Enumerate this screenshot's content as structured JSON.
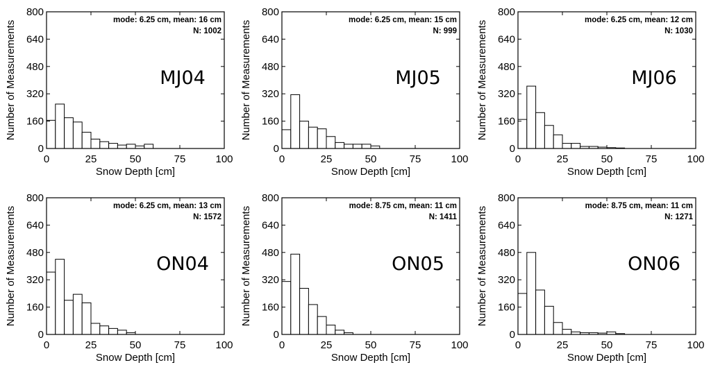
{
  "chart_data": [
    {
      "type": "bar",
      "label": "MJ04",
      "stats": "mode: 6.25 cm, mean: 16 cm",
      "count_label": "N: 1002",
      "xlabel": "Snow Depth [cm]",
      "ylabel": "Number of Measurements",
      "xlim": [
        0,
        100
      ],
      "ylim": [
        0,
        800
      ],
      "xticks": [
        0,
        25,
        50,
        75,
        100
      ],
      "yticks": [
        0,
        160,
        320,
        480,
        640,
        800
      ],
      "bin_width": 5,
      "bin_starts": [
        0,
        5,
        10,
        15,
        20,
        25,
        30,
        35,
        40,
        45,
        50,
        55
      ],
      "values": [
        165,
        260,
        180,
        155,
        95,
        55,
        40,
        30,
        20,
        25,
        15,
        25
      ]
    },
    {
      "type": "bar",
      "label": "MJ05",
      "stats": "mode: 6.25 cm, mean: 15 cm",
      "count_label": "N: 999",
      "xlabel": "Snow Depth [cm]",
      "ylabel": "Number of Measurements",
      "xlim": [
        0,
        100
      ],
      "ylim": [
        0,
        800
      ],
      "xticks": [
        0,
        25,
        50,
        75,
        100
      ],
      "yticks": [
        0,
        160,
        320,
        480,
        640,
        800
      ],
      "bin_width": 5,
      "bin_starts": [
        0,
        5,
        10,
        15,
        20,
        25,
        30,
        35,
        40,
        45,
        50
      ],
      "values": [
        110,
        315,
        160,
        125,
        115,
        70,
        35,
        25,
        25,
        25,
        15
      ]
    },
    {
      "type": "bar",
      "label": "MJ06",
      "stats": "mode: 6.25 cm, mean: 12 cm",
      "count_label": "N: 1030",
      "xlabel": "Snow Depth [cm]",
      "ylabel": "Number of Measurements",
      "xlim": [
        0,
        100
      ],
      "ylim": [
        0,
        800
      ],
      "xticks": [
        0,
        25,
        50,
        75,
        100
      ],
      "yticks": [
        0,
        160,
        320,
        480,
        640,
        800
      ],
      "bin_width": 5,
      "bin_starts": [
        0,
        5,
        10,
        15,
        20,
        25,
        30,
        35,
        40,
        45,
        50,
        55
      ],
      "values": [
        170,
        365,
        210,
        135,
        80,
        30,
        30,
        12,
        12,
        8,
        5,
        3
      ]
    },
    {
      "type": "bar",
      "label": "ON04",
      "stats": "mode: 6.25 cm, mean: 13 cm",
      "count_label": "N: 1572",
      "xlabel": "Snow Depth [cm]",
      "ylabel": "Number of Measurements",
      "xlim": [
        0,
        100
      ],
      "ylim": [
        0,
        800
      ],
      "xticks": [
        0,
        25,
        50,
        75,
        100
      ],
      "yticks": [
        0,
        160,
        320,
        480,
        640,
        800
      ],
      "bin_width": 5,
      "bin_starts": [
        0,
        5,
        10,
        15,
        20,
        25,
        30,
        35,
        40,
        45
      ],
      "values": [
        365,
        440,
        200,
        235,
        185,
        65,
        50,
        35,
        25,
        10
      ]
    },
    {
      "type": "bar",
      "label": "ON05",
      "stats": "mode: 8.75 cm, mean: 11 cm",
      "count_label": "N: 1411",
      "xlabel": "Snow Depth [cm]",
      "ylabel": "Number of Measurements",
      "xlim": [
        0,
        100
      ],
      "ylim": [
        0,
        800
      ],
      "xticks": [
        0,
        25,
        50,
        75,
        100
      ],
      "yticks": [
        0,
        160,
        320,
        480,
        640,
        800
      ],
      "bin_width": 5,
      "bin_starts": [
        0,
        5,
        10,
        15,
        20,
        25,
        30,
        35
      ],
      "values": [
        310,
        470,
        270,
        175,
        105,
        55,
        25,
        10
      ]
    },
    {
      "type": "bar",
      "label": "ON06",
      "stats": "mode: 8.75 cm, mean: 11 cm",
      "count_label": "N: 1271",
      "xlabel": "Snow Depth [cm]",
      "ylabel": "Number of Measurements",
      "xlim": [
        0,
        100
      ],
      "ylim": [
        0,
        800
      ],
      "xticks": [
        0,
        25,
        50,
        75,
        100
      ],
      "yticks": [
        0,
        160,
        320,
        480,
        640,
        800
      ],
      "bin_width": 5,
      "bin_starts": [
        0,
        5,
        10,
        15,
        20,
        25,
        30,
        35,
        40,
        45,
        50,
        55
      ],
      "values": [
        240,
        480,
        260,
        165,
        70,
        30,
        15,
        10,
        10,
        8,
        15,
        5
      ]
    }
  ]
}
